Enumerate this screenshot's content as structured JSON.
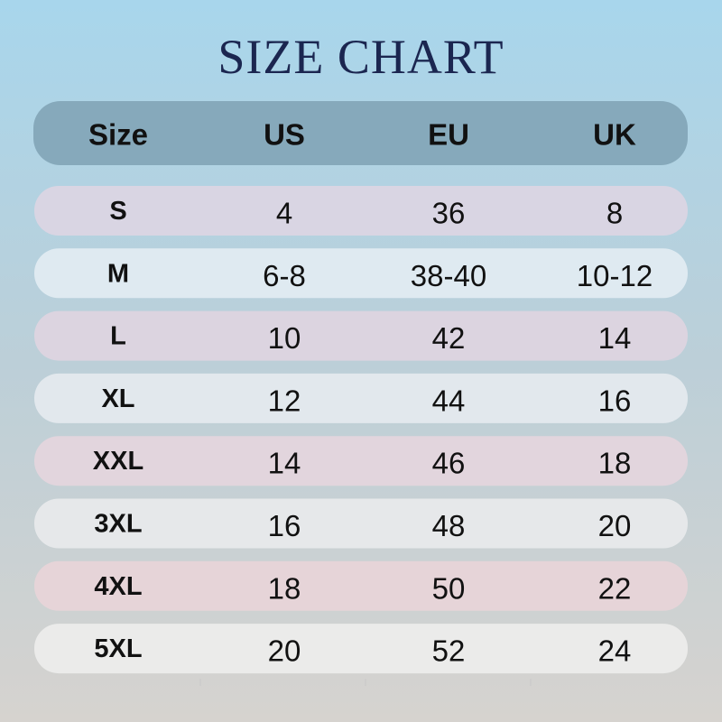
{
  "title": "SIZE CHART",
  "table": {
    "header": [
      "Size",
      "US",
      "EU",
      "UK"
    ],
    "rows": [
      [
        "S",
        "4",
        "36",
        "8"
      ],
      [
        "M",
        "6-8",
        "38-40",
        "10-12"
      ],
      [
        "L",
        "10",
        "42",
        "14"
      ],
      [
        "XL",
        "12",
        "44",
        "16"
      ],
      [
        "XXL",
        "14",
        "46",
        "18"
      ],
      [
        "3XL",
        "16",
        "48",
        "20"
      ],
      [
        "4XL",
        "18",
        "50",
        "22"
      ],
      [
        "5XL",
        "20",
        "52",
        "24"
      ]
    ]
  }
}
